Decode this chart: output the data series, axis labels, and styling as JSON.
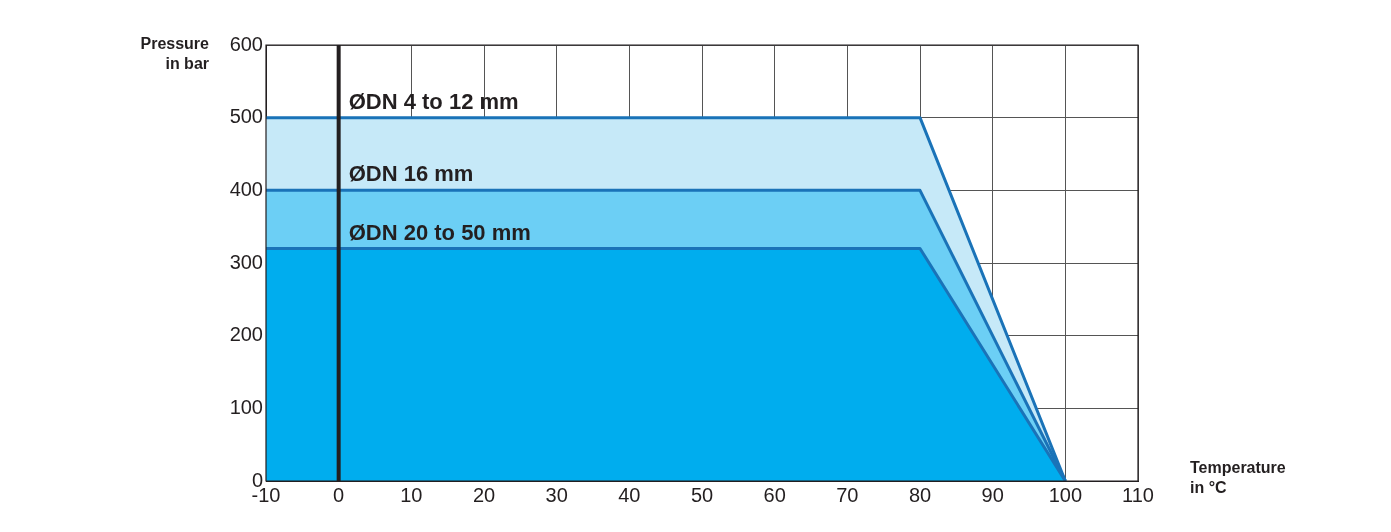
{
  "chart_data": {
    "type": "area",
    "xlabel": "Temperature\nin °C",
    "ylabel": "Pressure\nin bar",
    "x": [
      -10,
      80,
      100
    ],
    "series": [
      {
        "name": "ØDN 4 to 12 mm",
        "color": "#c6e9f8",
        "values": [
          500,
          500,
          0
        ]
      },
      {
        "name": "ØDN 16 mm",
        "color": "#6ccff5",
        "values": [
          400,
          400,
          0
        ]
      },
      {
        "name": "ØDN 20 to 50 mm",
        "color": "#00adee",
        "values": [
          320,
          320,
          0
        ]
      }
    ],
    "xlim": [
      -10,
      110
    ],
    "xticks": [
      -10,
      0,
      10,
      20,
      30,
      40,
      50,
      60,
      70,
      80,
      90,
      100,
      110
    ],
    "ylim": [
      0,
      600
    ],
    "yticks": [
      0,
      100,
      200,
      300,
      400,
      500,
      600
    ],
    "grid": true,
    "legend": false,
    "ref_lines": [
      {
        "axis": "x",
        "value": 0,
        "label": null,
        "color": "#231f20"
      }
    ]
  }
}
